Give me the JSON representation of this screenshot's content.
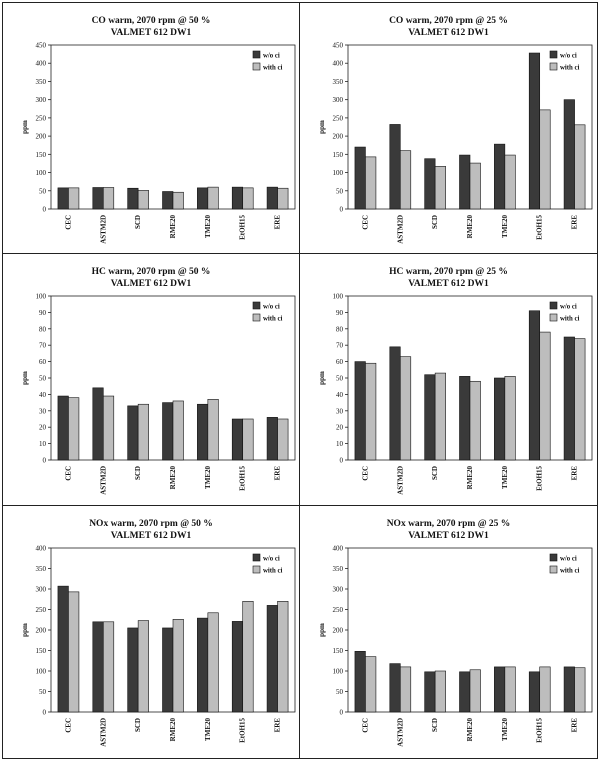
{
  "charts": [
    {
      "title_line1": "CO warm, 2070 rpm @ 50 %",
      "title_line2": "VALMET 612 DW1",
      "ylabel": "ppm",
      "ticks": [
        "0",
        "50",
        "100",
        "150",
        "200",
        "250",
        "300",
        "350",
        "400",
        "450"
      ],
      "legend": [
        "w/o ci",
        "with ci"
      ]
    },
    {
      "title_line1": "CO warm, 2070 rpm @ 25 %",
      "title_line2": "VALMET 612 DW1",
      "ylabel": "ppm",
      "ticks": [
        "0",
        "50",
        "100",
        "150",
        "200",
        "250",
        "300",
        "350",
        "400",
        "450"
      ],
      "legend": [
        "w/o ci",
        "with ci"
      ]
    },
    {
      "title_line1": "HC warm, 2070 rpm @ 50 %",
      "title_line2": "VALMET 612 DW1",
      "ylabel": "ppm",
      "ticks": [
        "0",
        "10",
        "20",
        "30",
        "40",
        "50",
        "60",
        "70",
        "80",
        "90",
        "100"
      ],
      "legend": [
        "w/o ci",
        "with ci"
      ]
    },
    {
      "title_line1": "HC warm, 2070 rpm @ 25 %",
      "title_line2": "VALMET 612 DW1",
      "ylabel": "ppm",
      "ticks": [
        "0",
        "10",
        "20",
        "30",
        "40",
        "50",
        "60",
        "70",
        "80",
        "90",
        "100"
      ],
      "legend": [
        "w/o ci",
        "with ci"
      ]
    },
    {
      "title_line1": "NOx warm, 2070 rpm @ 50 %",
      "title_line2": "VALMET 612 DW1",
      "ylabel": "ppm",
      "ticks": [
        "0",
        "50",
        "100",
        "150",
        "200",
        "250",
        "300",
        "350",
        "400"
      ],
      "legend": [
        "w/o ci",
        "with ci"
      ]
    },
    {
      "title_line1": "NOx warm, 2070 rpm @ 25 %",
      "title_line2": "VALMET 612 DW1",
      "ylabel": "ppm",
      "ticks": [
        "0",
        "50",
        "100",
        "150",
        "200",
        "250",
        "300",
        "350",
        "400"
      ],
      "legend": [
        "w/o ci",
        "with ci"
      ]
    }
  ],
  "chart_data": [
    {
      "type": "bar",
      "title": "CO warm, 2070 rpm @ 50 %",
      "subtitle": "VALMET 612 DW1",
      "ylabel": "ppm",
      "ylim": [
        0,
        450
      ],
      "categories": [
        "CEC",
        "ASTM2D",
        "SCD",
        "RME20",
        "TME20",
        "EtOH15",
        "ERE"
      ],
      "series": [
        {
          "name": "w/o ci",
          "values": [
            58,
            59,
            57,
            48,
            58,
            60,
            60
          ],
          "color": "#3a3a3a"
        },
        {
          "name": "with ci",
          "values": [
            58,
            59,
            51,
            46,
            60,
            58,
            57
          ],
          "color": "#bdbdbd"
        }
      ],
      "legend_position": "top-right"
    },
    {
      "type": "bar",
      "title": "CO warm, 2070 rpm @ 25 %",
      "subtitle": "VALMET 612 DW1",
      "ylabel": "ppm",
      "ylim": [
        0,
        450
      ],
      "categories": [
        "CEC",
        "ASTM2D",
        "SCD",
        "RME20",
        "TME20",
        "EtOH15",
        "ERE"
      ],
      "series": [
        {
          "name": "w/o ci",
          "values": [
            170,
            232,
            138,
            148,
            178,
            428,
            300
          ],
          "color": "#3a3a3a"
        },
        {
          "name": "with ci",
          "values": [
            143,
            160,
            117,
            126,
            148,
            272,
            231
          ],
          "color": "#bdbdbd"
        }
      ],
      "legend_position": "top-right"
    },
    {
      "type": "bar",
      "title": "HC warm, 2070 rpm @ 50 %",
      "subtitle": "VALMET 612 DW1",
      "ylabel": "ppm",
      "ylim": [
        0,
        100
      ],
      "categories": [
        "CEC",
        "ASTM2D",
        "SCD",
        "RME20",
        "TME20",
        "EtOH15",
        "ERE"
      ],
      "series": [
        {
          "name": "w/o ci",
          "values": [
            39,
            44,
            33,
            35,
            34,
            25,
            26
          ],
          "color": "#3a3a3a"
        },
        {
          "name": "with ci",
          "values": [
            38,
            39,
            34,
            36,
            37,
            25,
            25
          ],
          "color": "#bdbdbd"
        }
      ],
      "legend_position": "top-right"
    },
    {
      "type": "bar",
      "title": "HC warm, 2070 rpm @ 25 %",
      "subtitle": "VALMET 612 DW1",
      "ylabel": "ppm",
      "ylim": [
        0,
        100
      ],
      "categories": [
        "CEC",
        "ASTM2D",
        "SCD",
        "RME20",
        "TME20",
        "EtOH15",
        "ERE"
      ],
      "series": [
        {
          "name": "w/o ci",
          "values": [
            60,
            69,
            52,
            51,
            50,
            91,
            75
          ],
          "color": "#3a3a3a"
        },
        {
          "name": "with ci",
          "values": [
            59,
            63,
            53,
            48,
            51,
            78,
            74
          ],
          "color": "#bdbdbd"
        }
      ],
      "legend_position": "top-right"
    },
    {
      "type": "bar",
      "title": "NOx warm, 2070 rpm @ 50 %",
      "subtitle": "VALMET 612 DW1",
      "ylabel": "ppm",
      "ylim": [
        0,
        400
      ],
      "categories": [
        "CEC",
        "ASTM2D",
        "SCD",
        "RME20",
        "TME20",
        "EtOH15",
        "ERE"
      ],
      "series": [
        {
          "name": "w/o ci",
          "values": [
            307,
            220,
            205,
            205,
            229,
            221,
            260
          ],
          "color": "#3a3a3a"
        },
        {
          "name": "with ci",
          "values": [
            293,
            220,
            223,
            226,
            242,
            270,
            270
          ],
          "color": "#bdbdbd"
        }
      ],
      "legend_position": "top-right"
    },
    {
      "type": "bar",
      "title": "NOx warm, 2070 rpm @ 25 %",
      "subtitle": "VALMET 612 DW1",
      "ylabel": "ppm",
      "ylim": [
        0,
        400
      ],
      "categories": [
        "CEC",
        "ASTM2D",
        "SCD",
        "RME20",
        "TME20",
        "EtOH15",
        "ERE"
      ],
      "series": [
        {
          "name": "w/o ci",
          "values": [
            148,
            118,
            98,
            98,
            110,
            98,
            110
          ],
          "color": "#3a3a3a"
        },
        {
          "name": "with ci",
          "values": [
            135,
            110,
            100,
            103,
            110,
            110,
            108
          ],
          "color": "#bdbdbd"
        }
      ],
      "legend_position": "top-right"
    }
  ]
}
